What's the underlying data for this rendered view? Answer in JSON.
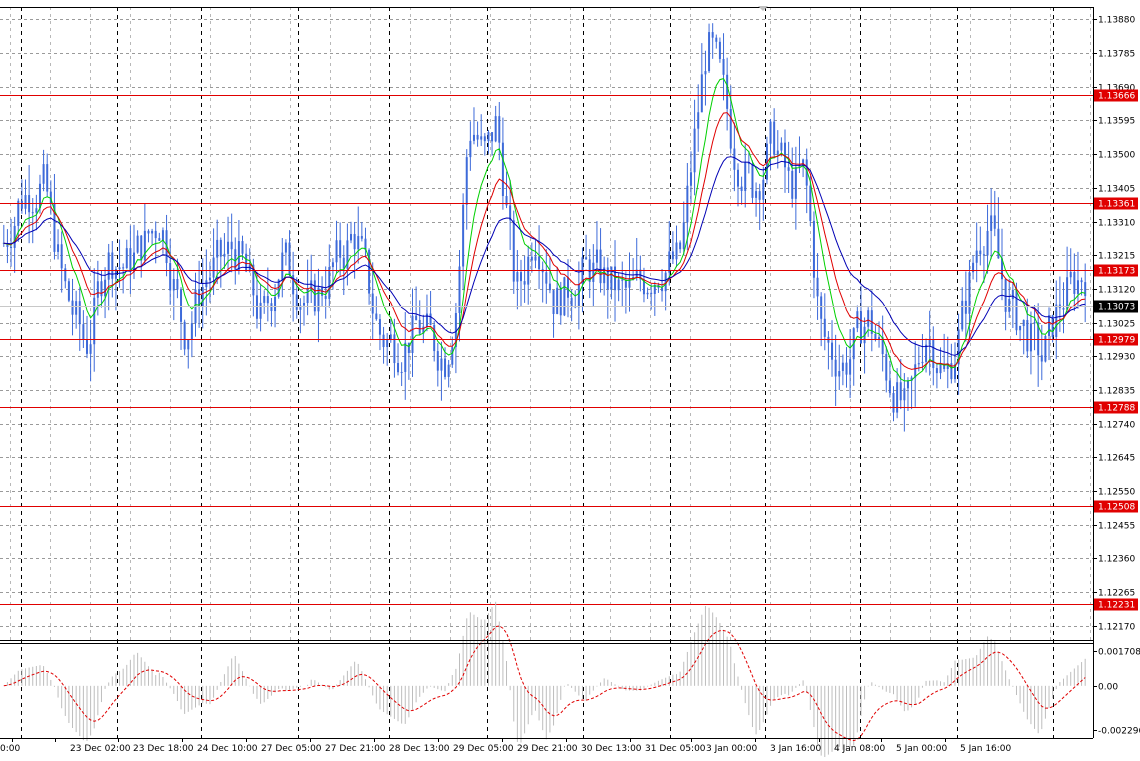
{
  "chart_data": {
    "type": "candlestick",
    "price_axis": {
      "min": 1.1213,
      "max": 1.13915,
      "ticks": [
        "1.13880",
        "1.13785",
        "1.13690",
        "1.13595",
        "1.13500",
        "1.13405",
        "1.13310",
        "1.13215",
        "1.13120",
        "1.13025",
        "1.12930",
        "1.12835",
        "1.12740",
        "1.12645",
        "1.12550",
        "1.12455",
        "1.12360",
        "1.12265",
        "1.12170"
      ],
      "current_price": "1.13073"
    },
    "levels": [
      "1.13666",
      "1.13361",
      "1.13173",
      "1.12979",
      "1.12788",
      "1.12508",
      "1.12231"
    ],
    "time_axis": {
      "labels": [
        "0:00",
        "23 Dec 02:00",
        "23 Dec 18:00",
        "24 Dec 10:00",
        "27 Dec 05:00",
        "27 Dec 21:00",
        "28 Dec 13:00",
        "29 Dec 05:00",
        "29 Dec 21:00",
        "30 Dec 13:00",
        "31 Dec 05:00",
        "3 Jan 00:00",
        "3 Jan 16:00",
        "4 Jan 08:00",
        "5 Jan 00:00",
        "5 Jan 16:00"
      ]
    },
    "bars_count": 300,
    "price_path": [
      [
        0,
        1.1325
      ],
      [
        8,
        1.1338
      ],
      [
        20,
        1.1342
      ],
      [
        30,
        1.1312
      ],
      [
        42,
        1.1295
      ],
      [
        52,
        1.1322
      ],
      [
        62,
        1.1318
      ],
      [
        80,
        1.1332
      ],
      [
        92,
        1.1298
      ],
      [
        102,
        1.1315
      ],
      [
        118,
        1.1324
      ],
      [
        132,
        1.1302
      ],
      [
        142,
        1.1322
      ],
      [
        156,
        1.1306
      ],
      [
        168,
        1.1318
      ],
      [
        180,
        1.1328
      ],
      [
        192,
        1.1298
      ],
      [
        204,
        1.1296
      ],
      [
        212,
        1.1302
      ],
      [
        226,
        1.1292
      ],
      [
        232,
        1.1312
      ],
      [
        238,
        1.1362
      ],
      [
        246,
        1.1348
      ],
      [
        252,
        1.136
      ],
      [
        262,
        1.1308
      ],
      [
        272,
        1.133
      ],
      [
        282,
        1.1308
      ],
      [
        300,
        1.1318
      ],
      [
        318,
        1.131
      ],
      [
        328,
        1.1315
      ],
      [
        336,
        1.1318
      ],
      [
        346,
        1.132
      ],
      [
        354,
        1.1358
      ],
      [
        360,
        1.1383
      ],
      [
        366,
        1.1372
      ],
      [
        374,
        1.135
      ],
      [
        384,
        1.134
      ],
      [
        394,
        1.1355
      ],
      [
        402,
        1.134
      ],
      [
        410,
        1.1345
      ],
      [
        418,
        1.1298
      ],
      [
        430,
        1.129
      ],
      [
        442,
        1.1305
      ],
      [
        452,
        1.1288
      ],
      [
        462,
        1.1276
      ],
      [
        472,
        1.1302
      ],
      [
        482,
        1.1286
      ],
      [
        490,
        1.1302
      ],
      [
        498,
        1.1325
      ],
      [
        504,
        1.1332
      ],
      [
        510,
        1.1316
      ],
      [
        515,
        1.1306
      ],
      [
        522,
        1.1301
      ],
      [
        532,
        1.1292
      ],
      [
        540,
        1.1308
      ],
      [
        548,
        1.1314
      ],
      [
        556,
        1.1318
      ]
    ],
    "indicators": {
      "ma_colors": [
        "#00d000",
        "#e00000",
        "#0000b4"
      ],
      "oscillator": {
        "ticks": [
          "0.001708",
          "0.00",
          "-0.002296"
        ],
        "min": -0.0023,
        "max": 0.0018
      }
    },
    "colors": {
      "candle": "#3d6ad9",
      "level": "#e00000",
      "grid": "#9a9a9a",
      "separator": "#000000"
    }
  }
}
